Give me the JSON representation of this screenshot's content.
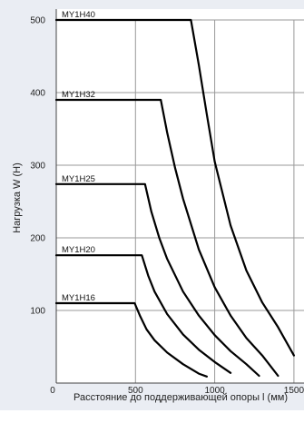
{
  "chart_data": {
    "type": "line",
    "title": "",
    "xlabel": "Расстояние до поддерживающей опоры l (мм)",
    "ylabel": "Нагрузка W (Н)",
    "xlim": [
      0,
      1500
    ],
    "ylim": [
      0,
      500
    ],
    "xticks": [
      "0",
      "500",
      "1000",
      "1500"
    ],
    "yticks": [
      "100",
      "200",
      "300",
      "400",
      "500"
    ],
    "grid": true,
    "colors": {
      "background": "#eaedf3",
      "plot_area": "#ffffff",
      "grid": "#999999",
      "line": "#000000"
    },
    "series": [
      {
        "name": "MY1H40",
        "points": [
          [
            0,
            500
          ],
          [
            850,
            500
          ],
          [
            900,
            438
          ],
          [
            950,
            370
          ],
          [
            1000,
            305
          ],
          [
            1100,
            217
          ],
          [
            1200,
            155
          ],
          [
            1300,
            111
          ],
          [
            1400,
            77
          ],
          [
            1500,
            38
          ]
        ]
      },
      {
        "name": "MY1H32",
        "points": [
          [
            0,
            390
          ],
          [
            660,
            390
          ],
          [
            700,
            345
          ],
          [
            750,
            296
          ],
          [
            800,
            254
          ],
          [
            900,
            184
          ],
          [
            1000,
            132
          ],
          [
            1100,
            93
          ],
          [
            1200,
            62
          ],
          [
            1300,
            38
          ],
          [
            1400,
            10
          ]
        ]
      },
      {
        "name": "MY1H25",
        "points": [
          [
            0,
            274
          ],
          [
            560,
            274
          ],
          [
            600,
            236
          ],
          [
            650,
            200
          ],
          [
            700,
            171
          ],
          [
            800,
            126
          ],
          [
            900,
            93
          ],
          [
            1000,
            66
          ],
          [
            1100,
            44
          ],
          [
            1200,
            26
          ],
          [
            1280,
            10
          ]
        ]
      },
      {
        "name": "MY1H20",
        "points": [
          [
            0,
            176
          ],
          [
            540,
            176
          ],
          [
            580,
            148
          ],
          [
            620,
            126
          ],
          [
            700,
            95
          ],
          [
            800,
            67
          ],
          [
            900,
            46
          ],
          [
            1000,
            29
          ],
          [
            1100,
            14
          ]
        ]
      },
      {
        "name": "MY1H16",
        "points": [
          [
            0,
            110
          ],
          [
            495,
            110
          ],
          [
            530,
            92
          ],
          [
            570,
            74
          ],
          [
            620,
            59
          ],
          [
            700,
            42
          ],
          [
            800,
            26
          ],
          [
            900,
            13
          ],
          [
            950,
            9
          ]
        ]
      }
    ]
  }
}
